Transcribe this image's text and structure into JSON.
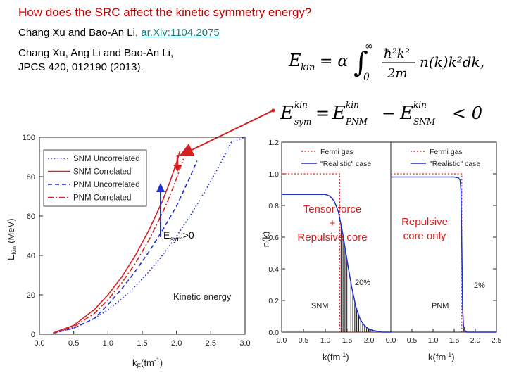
{
  "slide": {
    "title": "How does the SRC affect the kinetic symmetry energy?",
    "ref1_authors": "Chang Xu and Bao-An Li, ",
    "ref1_link": "ar.Xiv:1104.2075",
    "ref2_line1": "Chang Xu, Ang Li and Bao-An Li,",
    "ref2_line2": "JPCS 420, 012190 (2013).",
    "eq1": {
      "lhs": "E",
      "lhs_sub": "kin",
      "eq": "= α",
      "upper": "∞",
      "lower": "0",
      "num": "ħ²k²",
      "den": "2m",
      "tail": "n(k)k²dk,"
    },
    "eq2": {
      "lhs": "E",
      "lhs_sup": "kin",
      "lhs_sub": "sym",
      "eq": "=",
      "t1": "E",
      "t1_sup": "kin",
      "t1_sub": "PNM",
      "minus": "−",
      "t2": "E",
      "t2_sup": "kin",
      "t2_sub": "SNM",
      "tail": "< 0"
    }
  },
  "colors": {
    "red": "#d42020",
    "blue": "#1f2fd0",
    "title": "#c00000",
    "link": "#1a7f7f"
  },
  "left_chart": {
    "type": "line",
    "ylabel": "E",
    "ylabel_sub": "kin",
    "ylabel_unit": "(MeV)",
    "xlabel": "k",
    "xlabel_sub": "F",
    "xlabel_unit": "(fm",
    "xlabel_sup": "-1",
    "xlabel_close": ")",
    "xlim": [
      0,
      3.0
    ],
    "ylim": [
      0,
      100
    ],
    "xticks": [
      "0.0",
      "0.5",
      "1.0",
      "1.5",
      "2.0",
      "2.5",
      "3.0"
    ],
    "yticks": [
      "0",
      "20",
      "40",
      "60",
      "80",
      "100"
    ],
    "legend": [
      {
        "label": "SNM  Uncorrelated",
        "style": "dotted",
        "color": "#1f2fd0"
      },
      {
        "label": "SNM  Correlated",
        "style": "solid",
        "color": "#d42020"
      },
      {
        "label": "PNM  Uncorrelated",
        "style": "dashed",
        "color": "#1f2fd0"
      },
      {
        "label": "PNM  Correlated",
        "style": "dashdot",
        "color": "#d42020"
      }
    ],
    "annotation": "Kinetic energy",
    "esym_label": "E",
    "esym_sub": "sym",
    "esym_tail": ">0",
    "series": [
      {
        "name": "SNM  Uncorrelated",
        "x": [
          0.2,
          0.5,
          0.8,
          1.0,
          1.2,
          1.4,
          1.6,
          1.8,
          2.0,
          2.2,
          2.4,
          2.6,
          2.8,
          3.0
        ],
        "y": [
          0.5,
          3.1,
          8.0,
          12.4,
          17.9,
          24.4,
          31.8,
          40.3,
          49.7,
          60.2,
          71.6,
          84.0,
          97.5,
          100
        ]
      },
      {
        "name": "SNM  Correlated",
        "x": [
          0.2,
          0.5,
          0.8,
          1.0,
          1.2,
          1.4,
          1.6,
          1.8,
          1.9,
          2.0,
          2.05
        ],
        "y": [
          0.7,
          4.5,
          12.5,
          20.0,
          29.0,
          40.0,
          53.0,
          68.0,
          77.0,
          87.0,
          93.0
        ]
      },
      {
        "name": "PNM  Uncorrelated",
        "x": [
          0.2,
          0.5,
          0.8,
          1.0,
          1.2,
          1.4,
          1.6,
          1.8,
          2.0,
          2.2,
          2.3
        ],
        "y": [
          0.5,
          3.1,
          8.0,
          15.0,
          23.0,
          32.0,
          42.0,
          53.0,
          65.0,
          80.0,
          88.0
        ]
      },
      {
        "name": "PNM  Correlated",
        "x": [
          0.2,
          0.5,
          0.8,
          1.0,
          1.2,
          1.4,
          1.6,
          1.8,
          1.9,
          2.0,
          2.1
        ],
        "y": [
          0.6,
          3.8,
          10.5,
          17.5,
          26.0,
          36.0,
          48.0,
          62.0,
          70.0,
          79.0,
          89.0
        ]
      }
    ]
  },
  "right_chart": {
    "type": "line",
    "ylabel": "n(k)",
    "ylim": [
      0,
      1.2
    ],
    "yticks": [
      "0.0",
      "0.2",
      "0.4",
      "0.6",
      "0.8",
      "1.0",
      "1.2"
    ],
    "xlabel": "k(fm",
    "xlabel_sup": "-1",
    "xlabel_close": ")",
    "panels": [
      {
        "name": "SNM",
        "xlim": [
          0,
          2.5
        ],
        "xticks": [
          "0.0",
          "0.5",
          "1.0",
          "1.5",
          "2.0"
        ],
        "legend": [
          "Fermi gas",
          "\"Realistic\" case"
        ],
        "annotation": "Tensor force\n+\nRepulsive core",
        "percent": "20%",
        "fermi_gas": {
          "kF": 1.33,
          "n": 1.0
        },
        "realistic": {
          "x": [
            0.0,
            0.5,
            1.0,
            1.1,
            1.2,
            1.3,
            1.4,
            1.5,
            1.6,
            1.7,
            1.8,
            1.9,
            2.0,
            2.1,
            2.3,
            2.5
          ],
          "y": [
            0.87,
            0.87,
            0.87,
            0.86,
            0.83,
            0.76,
            0.62,
            0.45,
            0.29,
            0.16,
            0.08,
            0.04,
            0.02,
            0.01,
            0.0,
            0.0
          ]
        }
      },
      {
        "name": "PNM",
        "xlim": [
          0,
          2.5
        ],
        "xticks": [
          "0.0",
          "0.5",
          "1.0",
          "1.5",
          "2.0",
          "2.5"
        ],
        "legend": [
          "Fermi gas",
          "\"Realistic\" case"
        ],
        "annotation": "Repulsive\ncore only",
        "percent": "2%",
        "fermi_gas": {
          "kF": 1.68,
          "n": 1.0
        },
        "realistic": {
          "x": [
            0.0,
            0.5,
            1.0,
            1.5,
            1.6,
            1.64,
            1.66,
            1.68,
            1.7,
            1.72,
            1.76,
            1.8,
            2.0,
            2.5
          ],
          "y": [
            0.98,
            0.98,
            0.98,
            0.98,
            0.975,
            0.96,
            0.9,
            0.55,
            0.15,
            0.04,
            0.01,
            0.0,
            0.0,
            0.0
          ]
        }
      }
    ]
  }
}
